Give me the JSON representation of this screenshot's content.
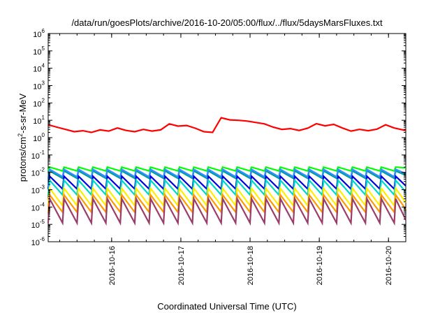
{
  "chart_data": {
    "type": "line",
    "title": "/data/run/goesPlots/archive/2016-10-20/05:00/flux/../flux/5daysMarsFluxes.txt",
    "xlabel": "Coordinated Universal Time (UTC)",
    "ylabel_parts": {
      "base": "protons/cm",
      "sup": "2",
      "rest": "-s-sr-MeV"
    },
    "y_scale": "log",
    "ylim": [
      1e-06,
      1000000.0
    ],
    "y_tick_mantissa": "10",
    "y_tick_exponents": [
      "-6",
      "-5",
      "-4",
      "-3",
      "-2",
      "-1",
      "0",
      "1",
      "2",
      "3",
      "4",
      "5",
      "6"
    ],
    "xlim": [
      "2016-10-15 02:00",
      "2016-10-20 06:00"
    ],
    "x_ticks": [
      "2016-10-16",
      "2016-10-17",
      "2016-10-18",
      "2016-10-19",
      "2016-10-20"
    ],
    "grid": false,
    "legend": "none",
    "series": [
      {
        "color": "#ff0000",
        "x": [
          "2016-10-15 02:00",
          "2016-10-15 05:00",
          "2016-10-15 08:00",
          "2016-10-15 11:00",
          "2016-10-15 14:00",
          "2016-10-15 17:00",
          "2016-10-15 20:00",
          "2016-10-15 23:00",
          "2016-10-16 02:00",
          "2016-10-16 05:00",
          "2016-10-16 08:00",
          "2016-10-16 11:00",
          "2016-10-16 14:00",
          "2016-10-16 17:00",
          "2016-10-16 20:00",
          "2016-10-16 23:00",
          "2016-10-17 02:00",
          "2016-10-17 05:00",
          "2016-10-17 08:00",
          "2016-10-17 11:00",
          "2016-10-17 14:00",
          "2016-10-17 17:00",
          "2016-10-17 20:00",
          "2016-10-17 23:00",
          "2016-10-18 02:00",
          "2016-10-18 05:00",
          "2016-10-18 08:00",
          "2016-10-18 11:00",
          "2016-10-18 14:00",
          "2016-10-18 17:00",
          "2016-10-18 20:00",
          "2016-10-18 23:00",
          "2016-10-19 02:00",
          "2016-10-19 05:00",
          "2016-10-19 08:00",
          "2016-10-19 11:00",
          "2016-10-19 14:00",
          "2016-10-19 17:00",
          "2016-10-19 20:00",
          "2016-10-19 23:00",
          "2016-10-20 02:00",
          "2016-10-20 05:00",
          "2016-10-20 06:00"
        ],
        "y": [
          5.5,
          4.0,
          3.0,
          2.2,
          2.5,
          2.0,
          2.8,
          2.4,
          3.6,
          2.6,
          2.2,
          3.0,
          2.4,
          2.8,
          6.2,
          4.6,
          5.0,
          3.5,
          2.2,
          2.0,
          14.0,
          10.5,
          10.0,
          9.0,
          7.5,
          6.2,
          4.0,
          3.0,
          3.3,
          2.6,
          3.5,
          6.4,
          4.8,
          5.8,
          3.6,
          2.4,
          3.0,
          2.5,
          3.1,
          5.5,
          3.6,
          2.8,
          2.5
        ]
      },
      {
        "color": "#00ff00",
        "x": [
          "2016-10-15 02:00",
          "2016-10-20 06:00"
        ],
        "y": [
          0.02,
          0.02
        ],
        "dip": 0.012,
        "period_hours": 5.0
      },
      {
        "color": "#009d9d",
        "x": [
          "2016-10-15 02:00",
          "2016-10-20 06:00"
        ],
        "y": [
          0.012,
          0.012
        ],
        "dip": 0.0045,
        "period_hours": 5.0
      },
      {
        "color": "#2f8fff",
        "x": [
          "2016-10-15 02:00",
          "2016-10-20 06:00"
        ],
        "y": [
          0.015,
          0.015
        ],
        "dip": 0.0055,
        "period_hours": 5.0
      },
      {
        "color": "#0000e0",
        "x": [
          "2016-10-15 02:00",
          "2016-10-20 06:00"
        ],
        "y": [
          0.006,
          0.006
        ],
        "dip": 0.0011,
        "period_hours": 5.0
      },
      {
        "color": "#00d8c8",
        "x": [
          "2016-10-15 02:00",
          "2016-10-20 06:00"
        ],
        "y": [
          0.0035,
          0.0035
        ],
        "dip": 0.0005,
        "period_hours": 5.0
      },
      {
        "color": "#ffee00",
        "x": [
          "2016-10-15 02:00",
          "2016-10-20 06:00"
        ],
        "y": [
          0.0012,
          0.0012
        ],
        "dip": 0.00012,
        "period_hours": 5.0
      },
      {
        "color": "#ff9900",
        "x": [
          "2016-10-15 02:00",
          "2016-10-20 06:00"
        ],
        "y": [
          0.0005,
          0.0005
        ],
        "dip": 5e-05,
        "period_hours": 5.0
      },
      {
        "color": "#9b3d6b",
        "x": [
          "2016-10-15 02:00",
          "2016-10-20 06:00"
        ],
        "y": [
          0.0003,
          0.0003
        ],
        "dip": 1.2e-05,
        "period_hours": 5.0
      }
    ]
  }
}
